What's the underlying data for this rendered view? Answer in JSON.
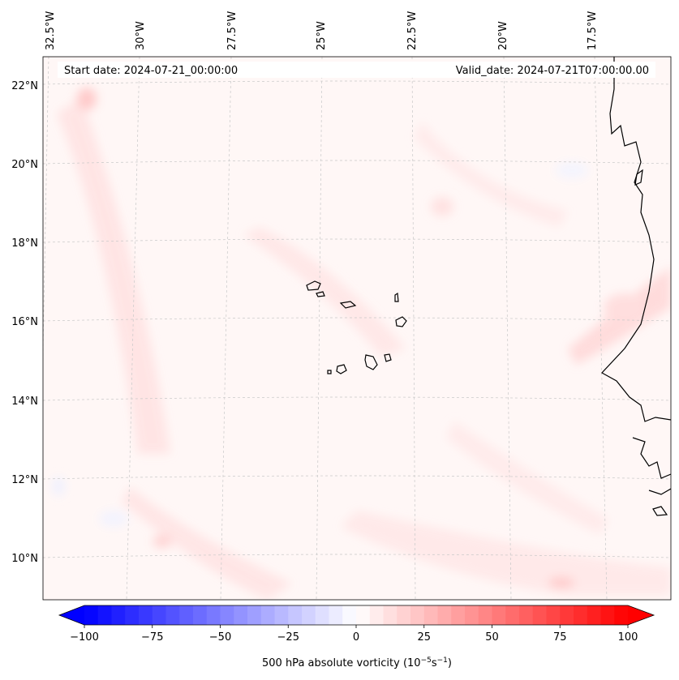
{
  "map": {
    "start_date_text": "Start date: 2024-07-21_00:00:00",
    "valid_date_text": "Valid_date: 2024-07-21T07:00:00.00",
    "lon_labels": [
      "32.5°W",
      "30°W",
      "27.5°W",
      "25°W",
      "22.5°W",
      "20°W",
      "17.5°W"
    ],
    "lat_labels": [
      "22°N",
      "20°N",
      "18°N",
      "16°N",
      "14°N",
      "12°N",
      "10°N"
    ],
    "gridlines": true,
    "coastline_color": "#000000",
    "field_name": "500 hPa absolute vorticity"
  },
  "colorbar": {
    "label_prefix": "500 hPa absolute vorticity (10",
    "label_exp1": "−5",
    "label_mid": "s",
    "label_exp2": "−1",
    "label_suffix": ")",
    "ticks": [
      "−100",
      "−75",
      "−50",
      "−25",
      "0",
      "25",
      "50",
      "75",
      "100"
    ],
    "min": -100,
    "max": 100,
    "levels": 40,
    "cmap": "bwr",
    "extend": "both",
    "color_min": "#0000ff",
    "color_mid": "#ffffff",
    "color_max": "#ff0000"
  }
}
